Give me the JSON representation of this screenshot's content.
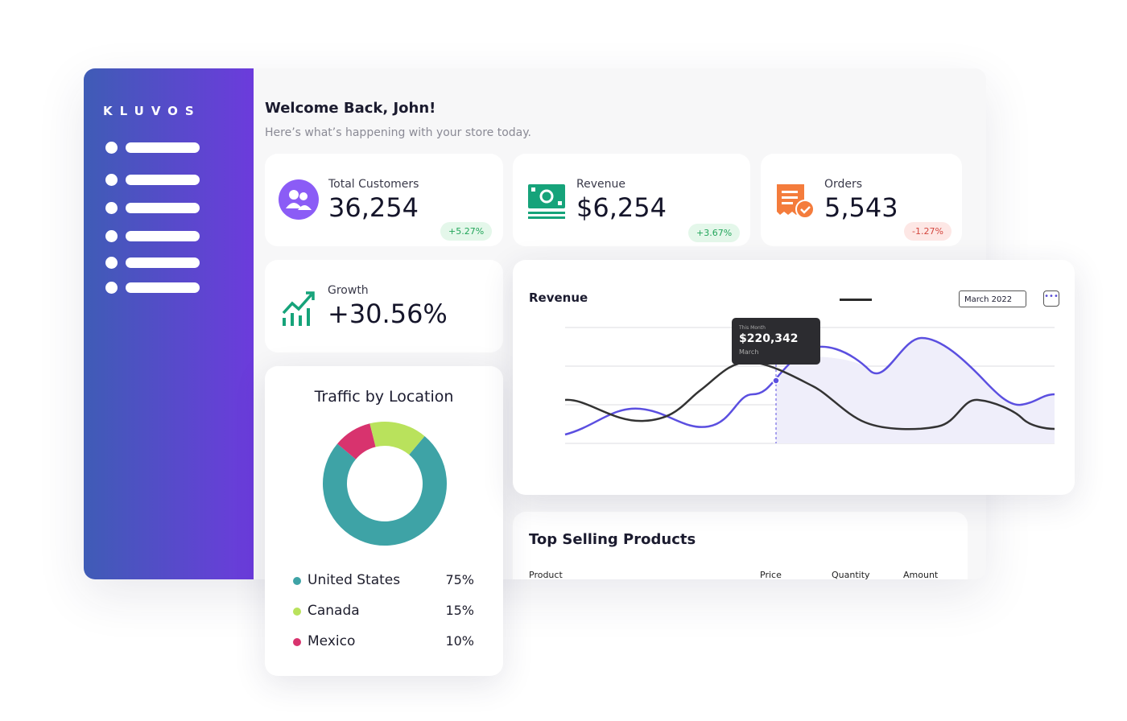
{
  "brand": "KLUVOS",
  "header": {
    "title": "Welcome Back, John!",
    "subtitle": "Here’s what’s happening with your store today."
  },
  "stats": [
    {
      "label": "Total Customers",
      "value": "36,254",
      "change": "+5.27%"
    },
    {
      "label": "Revenue",
      "value": "$6,254",
      "change": "+3.67%"
    },
    {
      "label": "Orders",
      "value": "5,543",
      "change": "-1.27%"
    }
  ],
  "growth": {
    "label": "Growth",
    "value": "+30.56%"
  },
  "traffic": {
    "title": "Traffic by Location",
    "items": [
      {
        "name": "United States",
        "value": 75,
        "label": "75%",
        "color": "#3ea3a6"
      },
      {
        "name": "Canada",
        "value": 15,
        "label": "15%",
        "color": "#b9e25c"
      },
      {
        "name": "Mexico",
        "value": 10,
        "label": "10%",
        "color": "#d8336e"
      }
    ]
  },
  "revenue": {
    "title": "Revenue",
    "date": "March 2022",
    "tooltip": {
      "period": "This Month",
      "value": "$220,342",
      "month": "March"
    }
  },
  "products": {
    "title": "Top Selling Products",
    "columns": [
      "Product",
      "Price",
      "Quantity",
      "Amount"
    ]
  }
}
